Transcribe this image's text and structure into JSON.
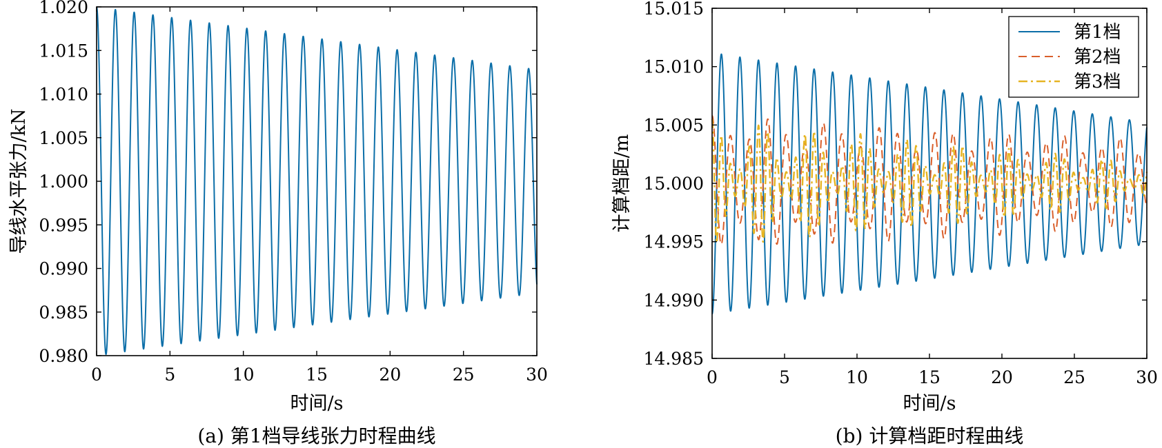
{
  "chart_data": [
    {
      "type": "line",
      "caption": "(a) 第1档导线张力时程曲线",
      "title": "",
      "xlabel": "时间/s",
      "ylabel": "导线水平张力/kN",
      "xlim": [
        0,
        30
      ],
      "ylim": [
        0.98,
        1.02
      ],
      "xticks": [
        "0",
        "5",
        "10",
        "15",
        "20",
        "25",
        "30"
      ],
      "yticks": [
        "0.980",
        "0.985",
        "0.990",
        "0.995",
        "1.000",
        "1.005",
        "1.010",
        "1.015",
        "1.020"
      ],
      "grid": false,
      "series": [
        {
          "color": "#0b6ea8",
          "style": "solid",
          "model": "damped-cosine",
          "mean": 1.0,
          "amplitude": 0.02,
          "amplitude_end": 0.0128,
          "period": 1.28,
          "x_range": [
            0,
            30
          ]
        }
      ]
    },
    {
      "type": "line",
      "caption": "(b) 计算档距时程曲线",
      "title": "",
      "xlabel": "时间/s",
      "ylabel": "计算档距/m",
      "xlim": [
        0,
        30
      ],
      "ylim": [
        14.985,
        15.015
      ],
      "xticks": [
        "0",
        "5",
        "10",
        "15",
        "20",
        "25",
        "30"
      ],
      "yticks": [
        "14.985",
        "14.990",
        "14.995",
        "15.000",
        "15.005",
        "15.010",
        "15.015"
      ],
      "grid": false,
      "legend_position": "top-right",
      "series": [
        {
          "name": "第1档",
          "color": "#0b6ea8",
          "style": "solid",
          "model": "damped-cosine",
          "mean": 15.0,
          "amplitude": -0.0112,
          "amplitude_end": -0.0052,
          "period": 1.28,
          "x_range": [
            0,
            30
          ]
        },
        {
          "name": "第2档",
          "color": "#d95f2b",
          "style": "dashed",
          "model": "beating",
          "mean": 15.0,
          "amplitude": 0.0058,
          "amplitude_end": 0.0038,
          "period": 1.28,
          "beat_period": 4.0,
          "beat_depth": 0.2,
          "x_range": [
            0,
            30
          ]
        },
        {
          "name": "第3档",
          "color": "#e6b422",
          "style": "dashdot",
          "model": "beating",
          "mean": 15.0,
          "amplitude": 0.0055,
          "amplitude_end": 0.0018,
          "period": 0.64,
          "beat_period": 3.4,
          "beat_depth": 0.4,
          "x_range": [
            0,
            30
          ]
        }
      ]
    }
  ]
}
